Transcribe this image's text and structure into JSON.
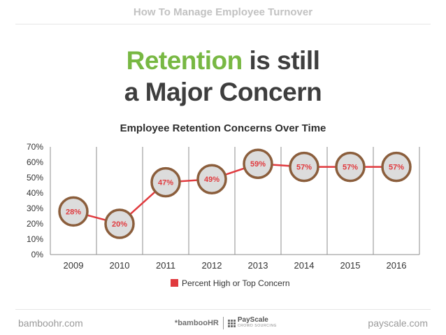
{
  "header": {
    "top_title": "How To Manage Employee Turnover",
    "headline_accent": "Retention",
    "headline_rest": " is still",
    "headline_line2": "a Major Concern"
  },
  "colors": {
    "accent_green": "#78b843",
    "line_red": "#e03a3e",
    "marker_ring": "#8b5e3c",
    "marker_fill": "#dcdcdc",
    "label_red": "#e03a3e"
  },
  "chart_data": {
    "type": "line",
    "title": "Employee Retention Concerns Over Time",
    "categories": [
      "2009",
      "2010",
      "2011",
      "2012",
      "2013",
      "2014",
      "2015",
      "2016"
    ],
    "series": [
      {
        "name": "Percent High or Top Concern",
        "values": [
          28,
          20,
          47,
          49,
          59,
          57,
          57,
          57
        ],
        "labels": [
          "28%",
          "20%",
          "47%",
          "49%",
          "59%",
          "57%",
          "57%",
          "57%"
        ]
      }
    ],
    "ylim": [
      0,
      70
    ],
    "yticks": [
      "0%",
      "10%",
      "20%",
      "30%",
      "40%",
      "50%",
      "60%",
      "70%"
    ],
    "ytick_values": [
      0,
      10,
      20,
      30,
      40,
      50,
      60,
      70
    ],
    "xlabel": "",
    "ylabel": "",
    "legend_position": "bottom-center",
    "grid": "vertical"
  },
  "footer": {
    "left": "bamboohr.com",
    "center_logo_a": "*bambooHR",
    "center_logo_b_name": "PayScale",
    "center_logo_b_sub": "CROWD SOURCING",
    "right": "payscale.com"
  }
}
